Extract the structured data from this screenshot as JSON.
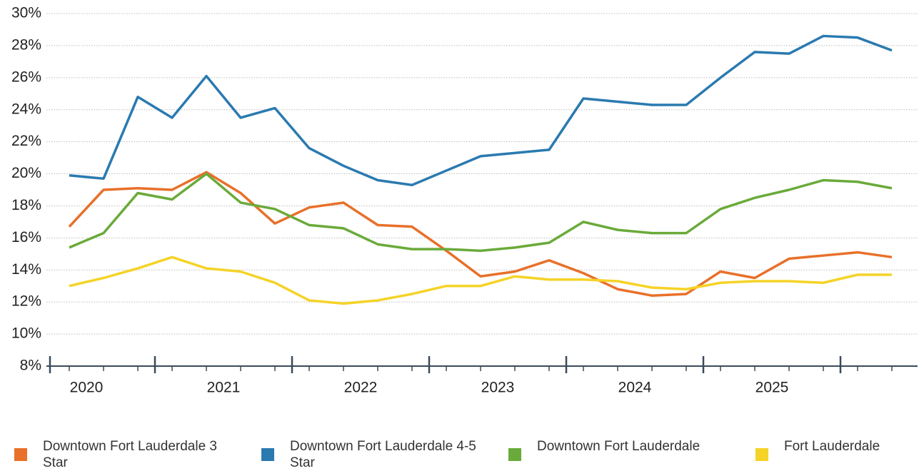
{
  "chart_data": {
    "type": "line",
    "categories": [
      "2020",
      null,
      null,
      null,
      "2021",
      null,
      null,
      null,
      "2022",
      null,
      null,
      null,
      "2023",
      null,
      null,
      null,
      "2024",
      null,
      null,
      null,
      "2025",
      null,
      null,
      null,
      null
    ],
    "series": [
      {
        "name": "Downtown Fort Lauderdale 3 Star",
        "color": "#e8702a",
        "values": [
          16.7,
          19.0,
          19.1,
          19.0,
          20.1,
          18.8,
          16.9,
          17.9,
          18.2,
          16.8,
          16.7,
          15.2,
          13.6,
          13.9,
          14.6,
          13.8,
          12.8,
          12.4,
          12.5,
          13.9,
          13.5,
          14.7,
          14.9,
          15.1,
          14.8
        ]
      },
      {
        "name": "Downtown Fort Lauderdale 4-5 Star",
        "color": "#2a7ab0",
        "values": [
          19.9,
          19.7,
          24.8,
          23.5,
          26.1,
          23.5,
          24.1,
          21.6,
          20.5,
          19.6,
          19.3,
          20.2,
          21.1,
          21.3,
          21.5,
          24.7,
          24.5,
          24.3,
          24.3,
          26.0,
          27.6,
          27.5,
          28.6,
          28.5,
          27.7
        ]
      },
      {
        "name": "Downtown Fort Lauderdale",
        "color": "#6aaa3a",
        "values": [
          15.4,
          16.3,
          18.8,
          18.4,
          20.0,
          18.2,
          17.8,
          16.8,
          16.6,
          15.6,
          15.3,
          15.3,
          15.2,
          15.4,
          15.7,
          17.0,
          16.5,
          16.3,
          16.3,
          17.8,
          18.5,
          19.0,
          19.6,
          19.5,
          19.1
        ]
      },
      {
        "name": "Fort Lauderdale",
        "color": "#f5d327",
        "values": [
          13.0,
          13.5,
          14.1,
          14.8,
          14.1,
          13.9,
          13.2,
          12.1,
          11.9,
          12.1,
          12.5,
          13.0,
          13.0,
          13.6,
          13.4,
          13.4,
          13.3,
          12.9,
          12.8,
          13.2,
          13.3,
          13.3,
          13.2,
          13.7,
          13.7
        ]
      }
    ],
    "ylim": [
      8,
      30
    ],
    "yticks": [
      {
        "value": 8,
        "label": "8%"
      },
      {
        "value": 10,
        "label": "10%"
      },
      {
        "value": 12,
        "label": "12%"
      },
      {
        "value": 14,
        "label": "14%"
      },
      {
        "value": 16,
        "label": "16%"
      },
      {
        "value": 18,
        "label": "18%"
      },
      {
        "value": 20,
        "label": "20%"
      },
      {
        "value": 22,
        "label": "22%"
      },
      {
        "value": 24,
        "label": "24%"
      },
      {
        "value": 26,
        "label": "26%"
      },
      {
        "value": 28,
        "label": "28%"
      },
      {
        "value": 30,
        "label": "30%"
      }
    ],
    "grid": true,
    "legend": "bottom"
  }
}
